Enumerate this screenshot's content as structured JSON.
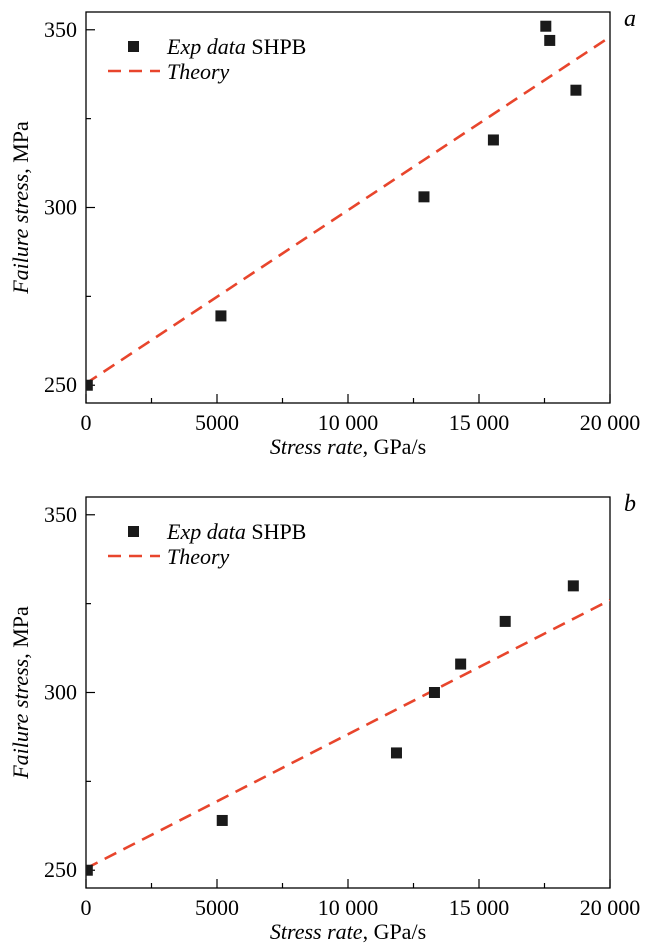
{
  "colors": {
    "marker": "#1a1a1a",
    "theory": "#e8452c",
    "axis": "#000000"
  },
  "chart_data": [
    {
      "type": "scatter",
      "panel_label": "a",
      "xlabel_italic": "Stress rate",
      "xlabel_unit": ", GPa/s",
      "ylabel_italic": "Failure stress",
      "ylabel_unit": ", MPa",
      "xlim": [
        0,
        20000
      ],
      "ylim": [
        245,
        355
      ],
      "x_ticks": [
        0,
        5000,
        10000,
        15000,
        20000
      ],
      "x_tick_labels": [
        "0",
        "5000",
        "10 000",
        "15 000",
        "20 000"
      ],
      "y_ticks": [
        250,
        300,
        350
      ],
      "y_tick_labels": [
        "250",
        "300",
        "350"
      ],
      "legend": {
        "placement": "top-left",
        "exp_italic": "Exp data",
        "exp_rest": " SHPB",
        "theory": "Theory"
      },
      "series": [
        {
          "name": "Exp data SHPB",
          "kind": "scatter",
          "x": [
            50,
            5150,
            12900,
            15550,
            17550,
            17700,
            18700
          ],
          "y": [
            250,
            269.5,
            303,
            319,
            351,
            347,
            333
          ]
        },
        {
          "name": "Theory",
          "kind": "line",
          "x": [
            0,
            20000
          ],
          "y": [
            250.5,
            348
          ]
        }
      ]
    },
    {
      "type": "scatter",
      "panel_label": "b",
      "xlabel_italic": "Stress rate",
      "xlabel_unit": ", GPa/s",
      "ylabel_italic": "Failure stress",
      "ylabel_unit": ", MPa",
      "xlim": [
        0,
        20000
      ],
      "ylim": [
        245,
        355
      ],
      "x_ticks": [
        0,
        5000,
        10000,
        15000,
        20000
      ],
      "x_tick_labels": [
        "0",
        "5000",
        "10 000",
        "15 000",
        "20 000"
      ],
      "y_ticks": [
        250,
        300,
        350
      ],
      "y_tick_labels": [
        "250",
        "300",
        "350"
      ],
      "legend": {
        "placement": "top-left",
        "exp_italic": "Exp data",
        "exp_rest": " SHPB",
        "theory": "Theory"
      },
      "series": [
        {
          "name": "Exp data SHPB",
          "kind": "scatter",
          "x": [
            50,
            5200,
            11850,
            13300,
            14300,
            16000,
            18600
          ],
          "y": [
            250,
            264,
            283,
            300,
            308,
            320,
            330
          ]
        },
        {
          "name": "Theory",
          "kind": "line",
          "x": [
            0,
            20000
          ],
          "y": [
            250.5,
            326
          ]
        }
      ]
    }
  ]
}
